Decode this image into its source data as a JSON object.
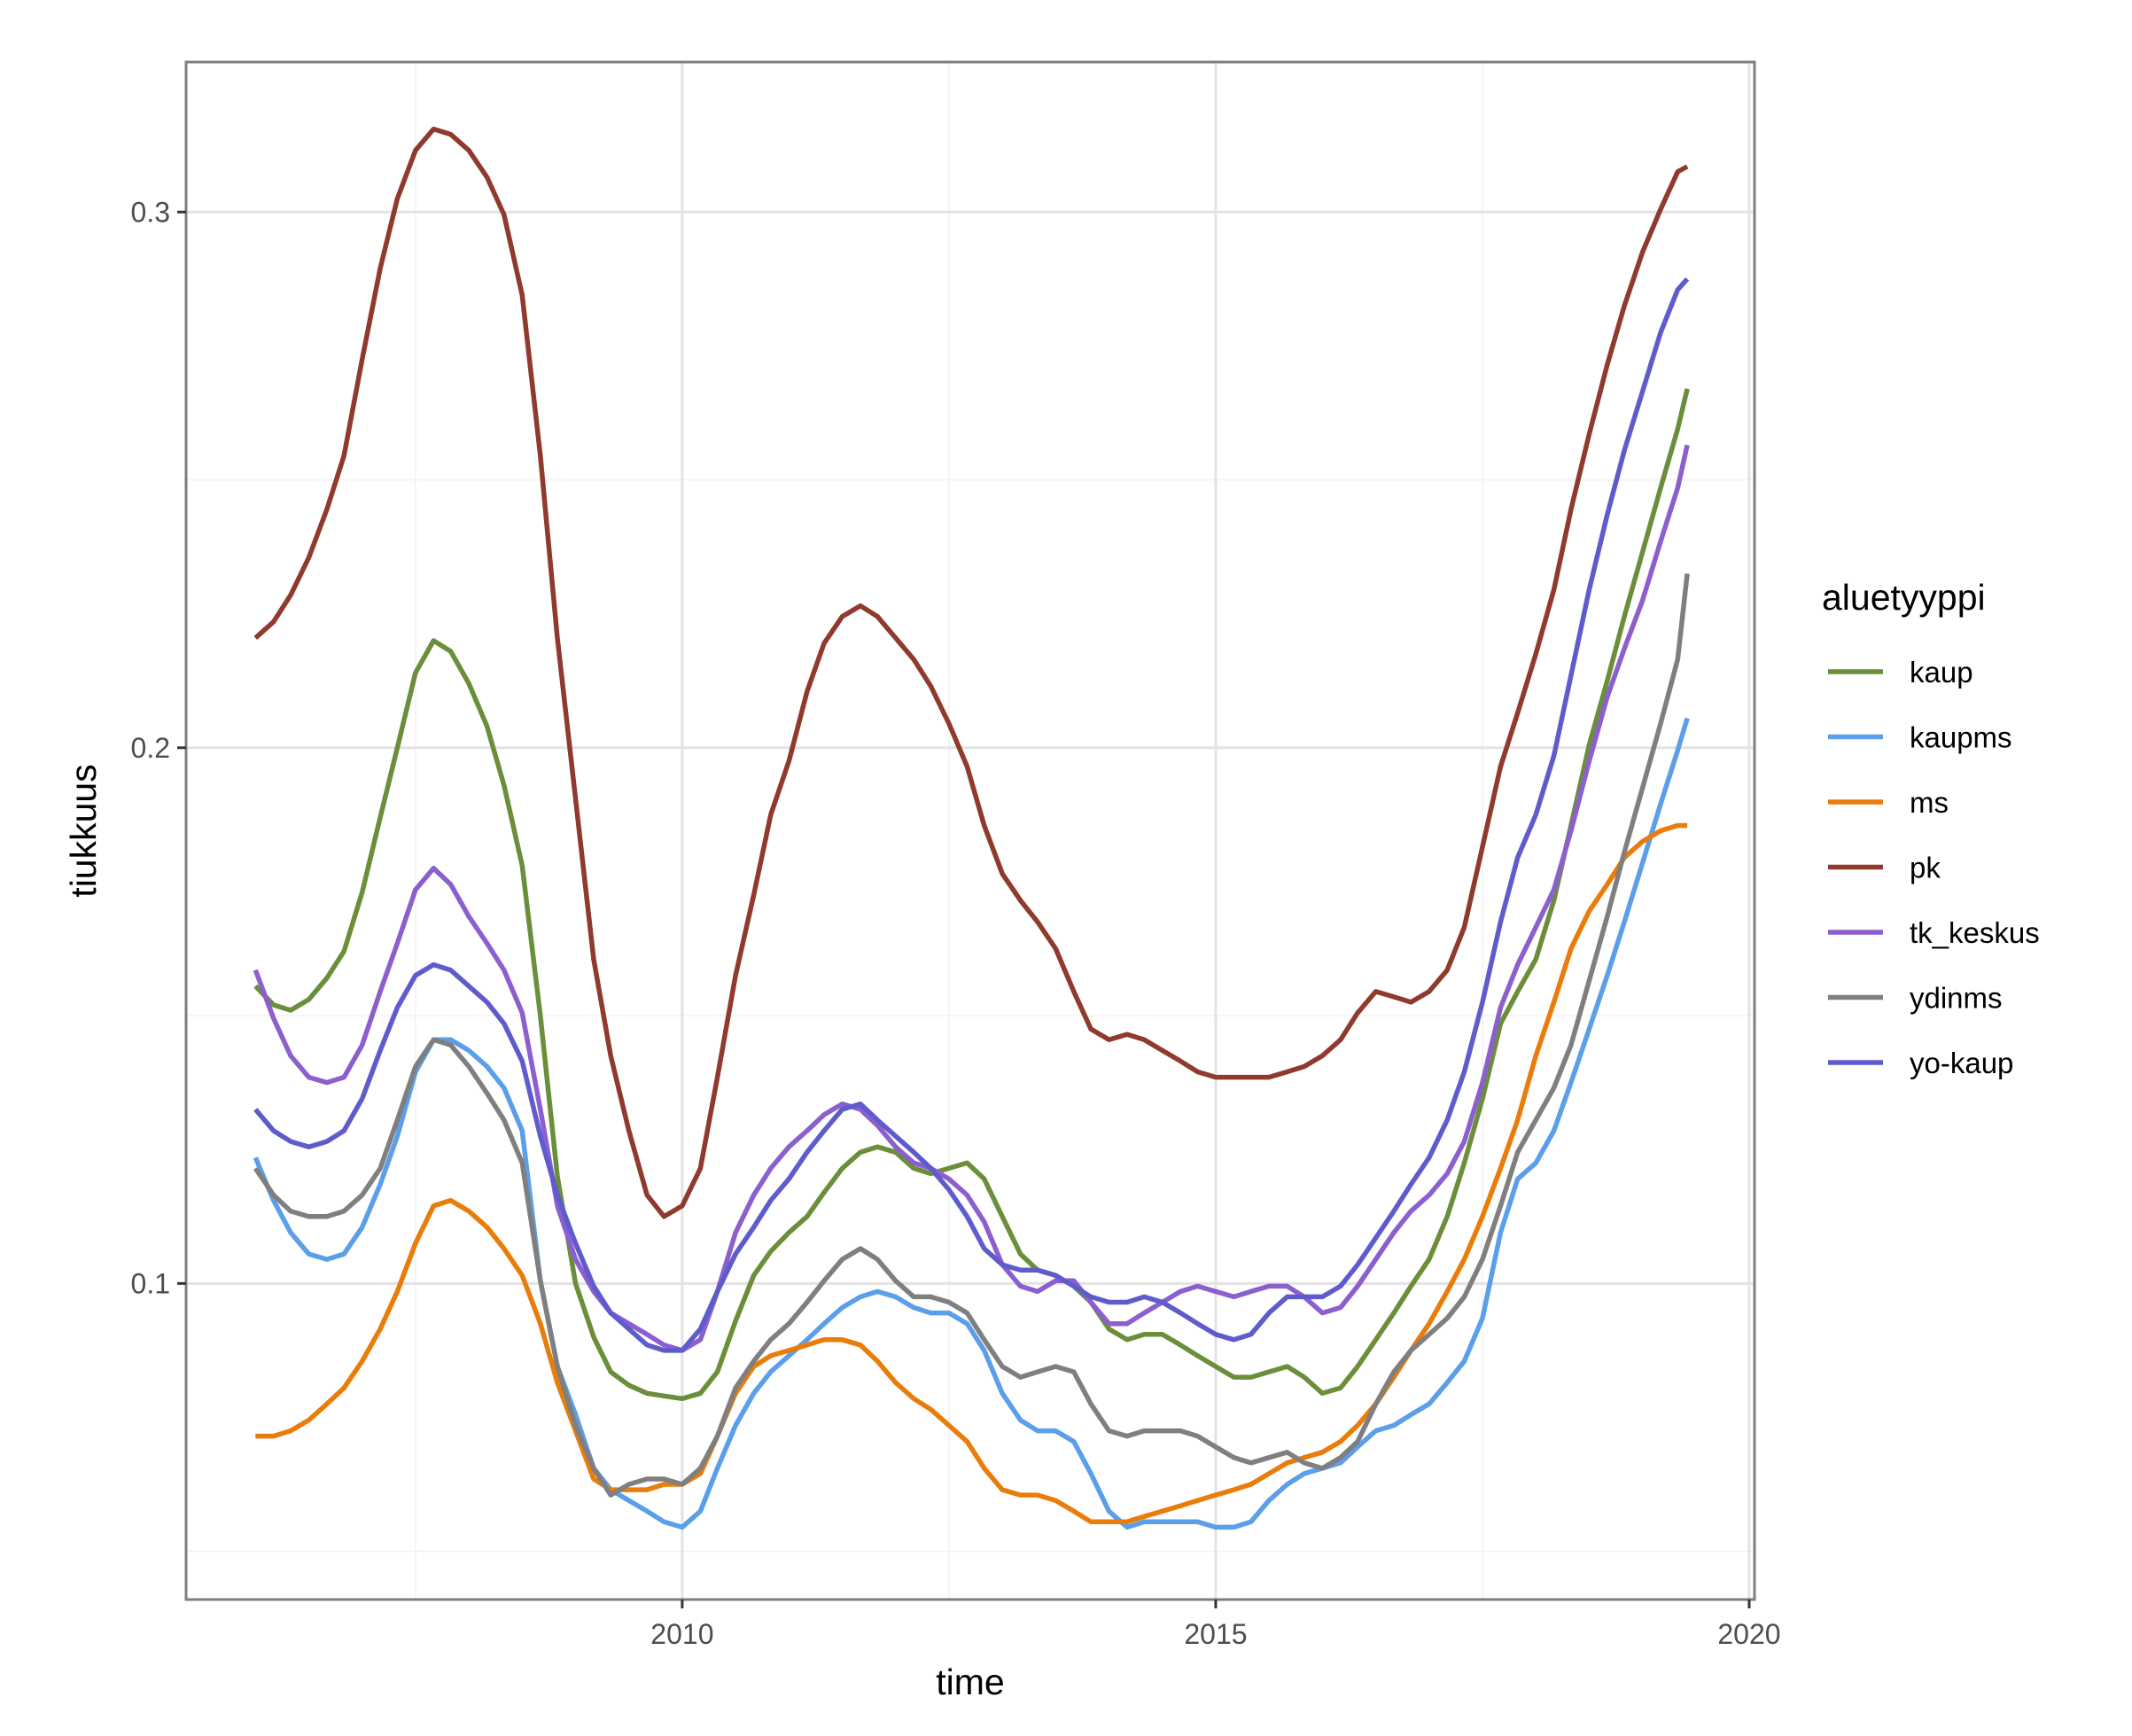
{
  "chart_data": {
    "type": "line",
    "xlabel": "time",
    "ylabel": "tiukkuus",
    "xlim": [
      2005.35,
      2020.05
    ],
    "ylim": [
      0.041,
      0.328
    ],
    "x_ticks": [
      2010,
      2015,
      2020
    ],
    "x_tick_labels": [
      "2010",
      "2015",
      "2020"
    ],
    "y_ticks": [
      0.1,
      0.2,
      0.3
    ],
    "y_tick_labels": [
      "0.1",
      "0.2",
      "0.3"
    ],
    "grid": true,
    "legend": {
      "title": "aluetyyppi",
      "position": "right"
    },
    "x": [
      2006.0,
      2006.17,
      2006.33,
      2006.5,
      2006.67,
      2006.83,
      2007.0,
      2007.17,
      2007.33,
      2007.5,
      2007.67,
      2007.83,
      2008.0,
      2008.17,
      2008.33,
      2008.5,
      2008.67,
      2008.83,
      2009.0,
      2009.17,
      2009.33,
      2009.5,
      2009.67,
      2009.83,
      2010.0,
      2010.17,
      2010.33,
      2010.5,
      2010.67,
      2010.83,
      2011.0,
      2011.17,
      2011.33,
      2011.5,
      2011.67,
      2011.83,
      2012.0,
      2012.17,
      2012.33,
      2012.5,
      2012.67,
      2012.83,
      2013.0,
      2013.17,
      2013.33,
      2013.5,
      2013.67,
      2013.83,
      2014.0,
      2014.17,
      2014.33,
      2014.5,
      2014.67,
      2014.83,
      2015.0,
      2015.17,
      2015.33,
      2015.5,
      2015.67,
      2015.83,
      2016.0,
      2016.17,
      2016.33,
      2016.5,
      2016.67,
      2016.83,
      2017.0,
      2017.17,
      2017.33,
      2017.5,
      2017.67,
      2017.83,
      2018.0,
      2018.17,
      2018.33,
      2018.5,
      2018.67,
      2018.83,
      2019.0,
      2019.17,
      2019.33,
      2019.42
    ],
    "series": [
      {
        "name": "kaup",
        "color": "#6b8e3a",
        "values": [
          0.1555,
          0.152,
          0.151,
          0.153,
          0.157,
          0.162,
          0.173,
          0.187,
          0.2,
          0.214,
          0.22,
          0.218,
          0.212,
          0.204,
          0.193,
          0.178,
          0.15,
          0.12,
          0.1,
          0.09,
          0.0835,
          0.081,
          0.0795,
          0.079,
          0.0785,
          0.0795,
          0.0835,
          0.093,
          0.1015,
          0.106,
          0.1095,
          0.1125,
          0.117,
          0.1215,
          0.1245,
          0.1255,
          0.1245,
          0.1215,
          0.1205,
          0.1215,
          0.1225,
          0.1195,
          0.1125,
          0.1055,
          0.1025,
          0.1015,
          0.0995,
          0.0965,
          0.0915,
          0.0895,
          0.0905,
          0.0905,
          0.0885,
          0.0865,
          0.0845,
          0.0825,
          0.0825,
          0.0835,
          0.0845,
          0.0825,
          0.0795,
          0.0805,
          0.0845,
          0.0895,
          0.0945,
          0.0995,
          0.1045,
          0.1125,
          0.1225,
          0.1345,
          0.1485,
          0.1545,
          0.1605,
          0.1715,
          0.1855,
          0.2005,
          0.2125,
          0.2245,
          0.2365,
          0.2485,
          0.2595,
          0.267
        ]
      },
      {
        "name": "kaupms",
        "color": "#5b9ee9",
        "values": [
          0.1235,
          0.1155,
          0.1095,
          0.1055,
          0.1045,
          0.1055,
          0.1105,
          0.1185,
          0.1275,
          0.1395,
          0.1455,
          0.1455,
          0.1435,
          0.1405,
          0.1365,
          0.1285,
          0.1005,
          0.0845,
          0.0755,
          0.0655,
          0.0615,
          0.0595,
          0.0575,
          0.0555,
          0.0545,
          0.0575,
          0.0655,
          0.0735,
          0.0795,
          0.0835,
          0.0865,
          0.0895,
          0.0925,
          0.0955,
          0.0975,
          0.0985,
          0.0975,
          0.0955,
          0.0945,
          0.0945,
          0.0925,
          0.0875,
          0.0795,
          0.0745,
          0.0725,
          0.0725,
          0.0705,
          0.0645,
          0.0575,
          0.0545,
          0.0555,
          0.0555,
          0.0555,
          0.0555,
          0.0545,
          0.0545,
          0.0555,
          0.0595,
          0.0625,
          0.0645,
          0.0655,
          0.0665,
          0.0695,
          0.0725,
          0.0735,
          0.0755,
          0.0775,
          0.0815,
          0.0855,
          0.0935,
          0.1095,
          0.1195,
          0.1225,
          0.1285,
          0.1375,
          0.1475,
          0.1575,
          0.1675,
          0.1785,
          0.1895,
          0.1995,
          0.2055
        ]
      },
      {
        "name": "ms",
        "color": "#ea7c0a",
        "values": [
          0.0715,
          0.0715,
          0.0725,
          0.0745,
          0.0775,
          0.0805,
          0.0855,
          0.0915,
          0.0985,
          0.1075,
          0.1145,
          0.1155,
          0.1135,
          0.1105,
          0.1065,
          0.1015,
          0.0925,
          0.0815,
          0.0725,
          0.0635,
          0.0615,
          0.0615,
          0.0615,
          0.0625,
          0.0625,
          0.0645,
          0.0715,
          0.0795,
          0.0845,
          0.0865,
          0.0875,
          0.0885,
          0.0895,
          0.0895,
          0.0885,
          0.0855,
          0.0815,
          0.0785,
          0.0765,
          0.0735,
          0.0705,
          0.0655,
          0.0615,
          0.0605,
          0.0605,
          0.0595,
          0.0575,
          0.0555,
          0.0555,
          0.0555,
          0.0565,
          0.0575,
          0.0585,
          0.0595,
          0.0605,
          0.0615,
          0.0625,
          0.0645,
          0.0665,
          0.0675,
          0.0685,
          0.0705,
          0.0735,
          0.0775,
          0.0825,
          0.0875,
          0.0925,
          0.0985,
          0.1045,
          0.1125,
          0.1215,
          0.1305,
          0.1425,
          0.1525,
          0.1625,
          0.1695,
          0.1745,
          0.1795,
          0.1825,
          0.1845,
          0.1855,
          0.1855
        ]
      },
      {
        "name": "pk",
        "color": "#8f3a2c",
        "values": [
          0.2205,
          0.2235,
          0.2285,
          0.2355,
          0.2445,
          0.2545,
          0.2725,
          0.2895,
          0.3025,
          0.3115,
          0.3155,
          0.3145,
          0.3115,
          0.3065,
          0.2995,
          0.2845,
          0.2545,
          0.2205,
          0.1905,
          0.1605,
          0.1425,
          0.1285,
          0.1165,
          0.1125,
          0.1145,
          0.1215,
          0.1385,
          0.1575,
          0.1725,
          0.1875,
          0.1975,
          0.2105,
          0.2195,
          0.2245,
          0.2265,
          0.2245,
          0.2205,
          0.2165,
          0.2115,
          0.2045,
          0.1965,
          0.1855,
          0.1765,
          0.1715,
          0.1675,
          0.1625,
          0.1545,
          0.1475,
          0.1455,
          0.1465,
          0.1455,
          0.1435,
          0.1415,
          0.1395,
          0.1385,
          0.1385,
          0.1385,
          0.1385,
          0.1395,
          0.1405,
          0.1425,
          0.1455,
          0.1505,
          0.1545,
          0.1535,
          0.1525,
          0.1545,
          0.1585,
          0.1665,
          0.1815,
          0.1965,
          0.2065,
          0.2175,
          0.2295,
          0.2445,
          0.2585,
          0.2715,
          0.2825,
          0.2925,
          0.3005,
          0.3075,
          0.3085
        ]
      },
      {
        "name": "tk_keskus",
        "color": "#8c5fcf",
        "values": [
          0.1585,
          0.1495,
          0.1425,
          0.1385,
          0.1375,
          0.1385,
          0.1445,
          0.1545,
          0.1635,
          0.1735,
          0.1775,
          0.1745,
          0.1685,
          0.1635,
          0.1585,
          0.1505,
          0.1325,
          0.1145,
          0.1045,
          0.0985,
          0.0945,
          0.0925,
          0.0905,
          0.0885,
          0.0875,
          0.0895,
          0.0985,
          0.1095,
          0.1165,
          0.1215,
          0.1255,
          0.1285,
          0.1315,
          0.1335,
          0.1325,
          0.1295,
          0.1255,
          0.1225,
          0.1215,
          0.1195,
          0.1165,
          0.1115,
          0.1035,
          0.0995,
          0.0985,
          0.1005,
          0.1005,
          0.0965,
          0.0925,
          0.0925,
          0.0945,
          0.0965,
          0.0985,
          0.0995,
          0.0985,
          0.0975,
          0.0985,
          0.0995,
          0.0995,
          0.0975,
          0.0945,
          0.0955,
          0.0995,
          0.1045,
          0.1095,
          0.1135,
          0.1165,
          0.1205,
          0.1265,
          0.1375,
          0.1515,
          0.1595,
          0.1665,
          0.1735,
          0.1845,
          0.1975,
          0.2095,
          0.2185,
          0.2275,
          0.2385,
          0.2485,
          0.2565
        ]
      },
      {
        "name": "ydinms",
        "color": "#7f7f7f",
        "values": [
          0.1215,
          0.1165,
          0.1135,
          0.1125,
          0.1125,
          0.1135,
          0.1165,
          0.1215,
          0.1305,
          0.1405,
          0.1455,
          0.1445,
          0.1405,
          0.1355,
          0.1305,
          0.1225,
          0.1005,
          0.0845,
          0.0735,
          0.0655,
          0.0605,
          0.0625,
          0.0635,
          0.0635,
          0.0625,
          0.0655,
          0.0715,
          0.0805,
          0.0855,
          0.0895,
          0.0925,
          0.0965,
          0.1005,
          0.1045,
          0.1065,
          0.1045,
          0.1005,
          0.0975,
          0.0975,
          0.0965,
          0.0945,
          0.0895,
          0.0845,
          0.0825,
          0.0835,
          0.0845,
          0.0835,
          0.0775,
          0.0725,
          0.0715,
          0.0725,
          0.0725,
          0.0725,
          0.0715,
          0.0695,
          0.0675,
          0.0665,
          0.0675,
          0.0685,
          0.0665,
          0.0655,
          0.0675,
          0.0705,
          0.0775,
          0.0835,
          0.0875,
          0.0905,
          0.0935,
          0.0975,
          0.1045,
          0.1145,
          0.1245,
          0.1305,
          0.1365,
          0.1445,
          0.1565,
          0.1685,
          0.1805,
          0.1925,
          0.2045,
          0.2165,
          0.2325
        ]
      },
      {
        "name": "yo-kaup",
        "color": "#5e5ccc",
        "values": [
          0.1325,
          0.1285,
          0.1265,
          0.1255,
          0.1265,
          0.1285,
          0.1345,
          0.1435,
          0.1515,
          0.1575,
          0.1595,
          0.1585,
          0.1555,
          0.1525,
          0.1485,
          0.1415,
          0.1275,
          0.1165,
          0.1075,
          0.0995,
          0.0945,
          0.0915,
          0.0885,
          0.0875,
          0.0875,
          0.0915,
          0.0985,
          0.1055,
          0.1105,
          0.1155,
          0.1195,
          0.1245,
          0.1285,
          0.1325,
          0.1335,
          0.1305,
          0.1275,
          0.1245,
          0.1215,
          0.1175,
          0.1125,
          0.1065,
          0.1035,
          0.1025,
          0.1025,
          0.1015,
          0.0995,
          0.0975,
          0.0965,
          0.0965,
          0.0975,
          0.0965,
          0.0945,
          0.0925,
          0.0905,
          0.0895,
          0.0905,
          0.0945,
          0.0975,
          0.0975,
          0.0975,
          0.0995,
          0.1035,
          0.1085,
          0.1135,
          0.1185,
          0.1235,
          0.1305,
          0.1395,
          0.1525,
          0.1675,
          0.1795,
          0.1875,
          0.1985,
          0.2135,
          0.2295,
          0.2435,
          0.2555,
          0.2665,
          0.2775,
          0.2855,
          0.2875
        ]
      }
    ]
  }
}
